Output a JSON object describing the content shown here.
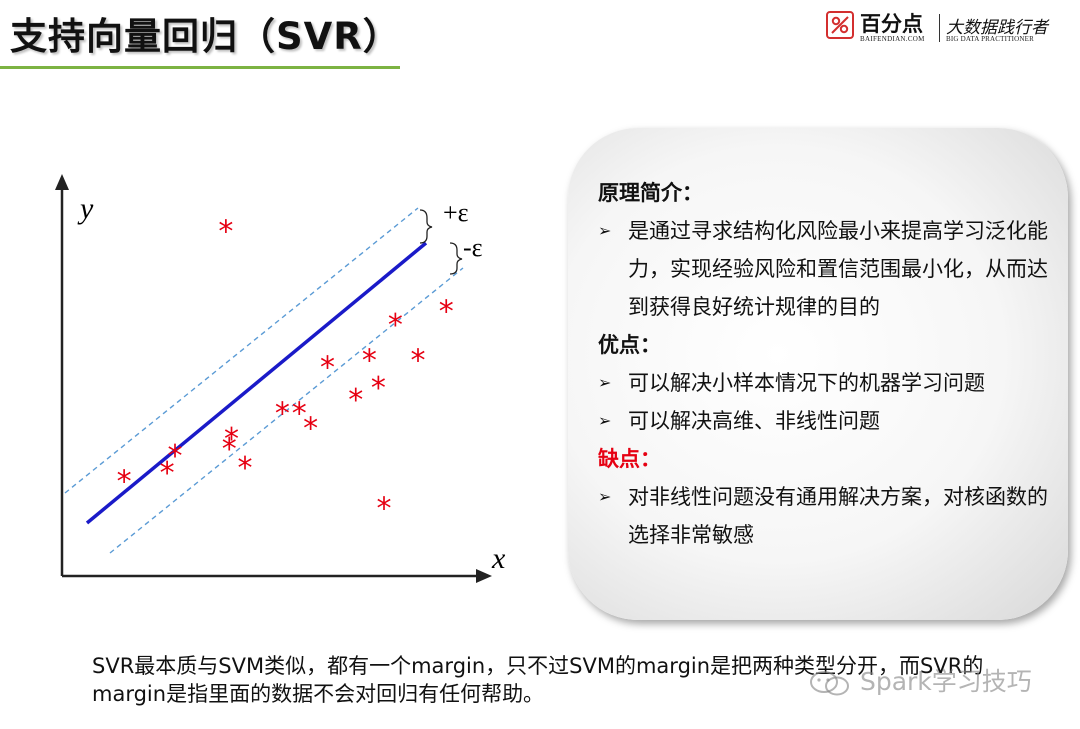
{
  "page": {
    "title": "支持向量回归（SVR）"
  },
  "logo": {
    "brand_cn": "百分点",
    "brand_en": "BAIFENDIAN.COM",
    "slogan_cn": "大数据践行者",
    "slogan_en": "BIG DATA PRACTITIONER"
  },
  "diagram": {
    "x_axis_label": "x",
    "y_axis_label": "y",
    "upper_margin_label": "+ε",
    "lower_margin_label": "-ε",
    "point_marker": "*",
    "colors": {
      "line": "#1a1ac8",
      "margin": "#5b9bd5",
      "points": "#e60012",
      "axes": "#222222"
    },
    "points": [
      {
        "x": 0.55,
        "y": 0.58
      },
      {
        "x": 0.93,
        "y": 0.63
      },
      {
        "x": 1.0,
        "y": 0.73
      },
      {
        "x": 1.5,
        "y": 0.83
      },
      {
        "x": 1.48,
        "y": 0.77
      },
      {
        "x": 1.62,
        "y": 0.66
      },
      {
        "x": 1.95,
        "y": 0.98
      },
      {
        "x": 2.1,
        "y": 0.98
      },
      {
        "x": 2.2,
        "y": 0.89
      },
      {
        "x": 2.35,
        "y": 1.25
      },
      {
        "x": 2.6,
        "y": 1.06
      },
      {
        "x": 2.8,
        "y": 1.13
      },
      {
        "x": 2.72,
        "y": 1.29
      },
      {
        "x": 2.95,
        "y": 1.5
      },
      {
        "x": 3.15,
        "y": 1.29
      },
      {
        "x": 3.4,
        "y": 1.58
      },
      {
        "x": 1.45,
        "y": 2.05
      },
      {
        "x": 2.85,
        "y": 0.42
      }
    ]
  },
  "card": {
    "principle_heading": "原理简介：",
    "principle_items": [
      "是通过寻求结构化风险最小来提高学习泛化能力，实现经验风险和置信范围最小化，从而达到获得良好统计规律的目的"
    ],
    "pros_heading": "优点：",
    "pros_items": [
      "可以解决小样本情况下的机器学习问题",
      "可以解决高维、非线性问题"
    ],
    "cons_heading": "缺点：",
    "cons_items": [
      "对非线性问题没有通用解决方案，对核函数的选择非常敏感"
    ],
    "bullet": "➢",
    "cons_color": "#e60012"
  },
  "caption": {
    "text": "SVR最本质与SVM类似，都有一个margin，只不过SVM的margin是把两种类型分开，而SVR的margin是指里面的数据不会对回归有任何帮助。"
  },
  "watermark": {
    "text": "Spark学习技巧"
  }
}
